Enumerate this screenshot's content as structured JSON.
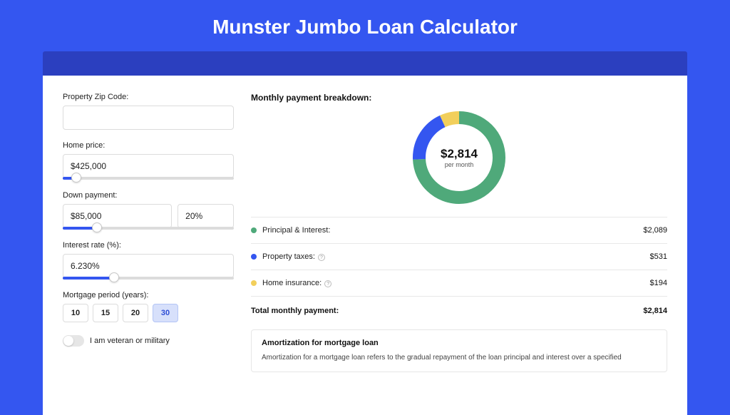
{
  "title": "Munster Jumbo Loan Calculator",
  "colors": {
    "page_bg": "#3456f0",
    "band_bg": "#2b3fbf",
    "card_bg": "#ffffff",
    "slider_fill": "#3456f0",
    "period_active_bg": "#d7e0fb"
  },
  "form": {
    "zip_label": "Property Zip Code:",
    "zip_value": "",
    "home_price_label": "Home price:",
    "home_price_value": "$425,000",
    "home_price_pct": 8,
    "down_label": "Down payment:",
    "down_value": "$85,000",
    "down_pct_value": "20%",
    "down_pct": 20,
    "rate_label": "Interest rate (%):",
    "rate_value": "6.230%",
    "rate_pct": 30,
    "period_label": "Mortgage period (years):",
    "periods": [
      "10",
      "15",
      "20",
      "30"
    ],
    "period_active": "30",
    "veteran_label": "I am veteran or military"
  },
  "breakdown": {
    "title": "Monthly payment breakdown:",
    "total_display": "$2,814",
    "total_sub": "per month",
    "donut": {
      "size": 130,
      "ring_width": 18,
      "items": [
        {
          "label": "Principal & Interest:",
          "value": "$2,089",
          "num": 2089,
          "color": "#4fa97a"
        },
        {
          "label": "Property taxes:",
          "value": "$531",
          "num": 531,
          "color": "#3456f0",
          "info": true
        },
        {
          "label": "Home insurance:",
          "value": "$194",
          "num": 194,
          "color": "#f2cf5b",
          "info": true
        }
      ]
    },
    "total_label": "Total monthly payment:",
    "total_value": "$2,814"
  },
  "amort": {
    "title": "Amortization for mortgage loan",
    "text": "Amortization for a mortgage loan refers to the gradual repayment of the loan principal and interest over a specified"
  }
}
